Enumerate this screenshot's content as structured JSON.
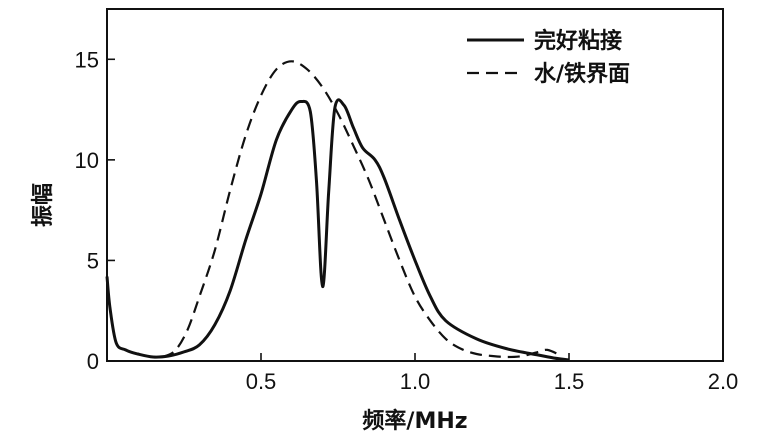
{
  "chart_data": {
    "type": "line",
    "title": "",
    "xlabel": "频率/MHz",
    "ylabel": "振幅",
    "xlim": [
      0,
      2.0
    ],
    "ylim": [
      0,
      17.5
    ],
    "grid": false,
    "legend_position": "top-right",
    "x_ticks": [
      {
        "value": 0.5,
        "label": "0.5"
      },
      {
        "value": 1.0,
        "label": "1.0"
      },
      {
        "value": 1.5,
        "label": "1.5"
      },
      {
        "value": 2.0,
        "label": "2.0"
      }
    ],
    "y_ticks": [
      {
        "value": 0,
        "label": "0"
      },
      {
        "value": 5,
        "label": "5"
      },
      {
        "value": 10,
        "label": "10"
      },
      {
        "value": 15,
        "label": "15"
      }
    ],
    "series": [
      {
        "name": "完好粘接",
        "style": "solid",
        "points": [
          [
            0.0,
            4.2
          ],
          [
            0.01,
            2.6
          ],
          [
            0.03,
            0.9
          ],
          [
            0.06,
            0.55
          ],
          [
            0.1,
            0.35
          ],
          [
            0.15,
            0.2
          ],
          [
            0.2,
            0.25
          ],
          [
            0.25,
            0.45
          ],
          [
            0.3,
            0.8
          ],
          [
            0.35,
            1.8
          ],
          [
            0.4,
            3.5
          ],
          [
            0.45,
            6.0
          ],
          [
            0.5,
            8.3
          ],
          [
            0.55,
            11.0
          ],
          [
            0.6,
            12.5
          ],
          [
            0.63,
            12.9
          ],
          [
            0.66,
            12.4
          ],
          [
            0.68,
            9.0
          ],
          [
            0.7,
            3.7
          ],
          [
            0.72,
            8.5
          ],
          [
            0.74,
            12.6
          ],
          [
            0.77,
            12.7
          ],
          [
            0.8,
            11.6
          ],
          [
            0.83,
            10.6
          ],
          [
            0.87,
            10.0
          ],
          [
            0.9,
            9.1
          ],
          [
            0.95,
            7.0
          ],
          [
            1.0,
            5.0
          ],
          [
            1.05,
            3.2
          ],
          [
            1.1,
            2.0
          ],
          [
            1.2,
            1.1
          ],
          [
            1.3,
            0.6
          ],
          [
            1.4,
            0.3
          ],
          [
            1.45,
            0.15
          ],
          [
            1.5,
            0.05
          ]
        ]
      },
      {
        "name": "水/铁界面",
        "style": "dashed",
        "points": [
          [
            0.18,
            0.2
          ],
          [
            0.22,
            0.5
          ],
          [
            0.26,
            1.5
          ],
          [
            0.3,
            3.2
          ],
          [
            0.35,
            5.5
          ],
          [
            0.4,
            8.5
          ],
          [
            0.45,
            11.2
          ],
          [
            0.5,
            13.2
          ],
          [
            0.55,
            14.5
          ],
          [
            0.6,
            14.9
          ],
          [
            0.65,
            14.5
          ],
          [
            0.7,
            13.6
          ],
          [
            0.75,
            12.3
          ],
          [
            0.8,
            10.7
          ],
          [
            0.85,
            9.0
          ],
          [
            0.9,
            7.0
          ],
          [
            0.95,
            5.0
          ],
          [
            1.0,
            3.2
          ],
          [
            1.05,
            2.0
          ],
          [
            1.1,
            1.1
          ],
          [
            1.15,
            0.6
          ],
          [
            1.2,
            0.35
          ],
          [
            1.25,
            0.25
          ],
          [
            1.3,
            0.2
          ],
          [
            1.35,
            0.25
          ],
          [
            1.4,
            0.45
          ],
          [
            1.43,
            0.55
          ],
          [
            1.47,
            0.3
          ]
        ]
      }
    ]
  }
}
